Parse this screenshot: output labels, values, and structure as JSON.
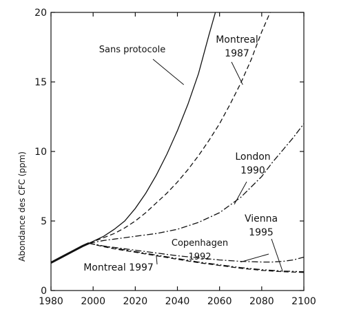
{
  "chart_data": {
    "type": "line",
    "title": "",
    "xlabel": "",
    "ylabel": "Abondance des CFC  (ppm)",
    "xlim": [
      1980,
      2100
    ],
    "ylim": [
      0,
      20
    ],
    "xticks": [
      "1980",
      "2000",
      "2020",
      "2040",
      "2060",
      "2080",
      "2100"
    ],
    "yticks": [
      "0",
      "5",
      "10",
      "15",
      "20"
    ],
    "grid": false,
    "legend": "none",
    "series": [
      {
        "name": "Sans protocole",
        "style": "solid",
        "x": [
          1980,
          1985,
          1990,
          1995,
          1998,
          2005,
          2010,
          2015,
          2020,
          2025,
          2030,
          2035,
          2040,
          2045,
          2050,
          2055,
          2058
        ],
        "y": [
          2.0,
          2.4,
          2.8,
          3.2,
          3.4,
          3.9,
          4.4,
          5.0,
          5.9,
          7.0,
          8.3,
          9.8,
          11.5,
          13.4,
          15.6,
          18.4,
          20.0
        ]
      },
      {
        "name": "Montreal 1987",
        "style": "dashed",
        "x": [
          1998,
          2005,
          2010,
          2015,
          2020,
          2025,
          2030,
          2035,
          2040,
          2045,
          2050,
          2055,
          2060,
          2065,
          2070,
          2075,
          2080,
          2084
        ],
        "y": [
          3.4,
          3.8,
          4.1,
          4.5,
          5.0,
          5.6,
          6.3,
          7.0,
          7.8,
          8.7,
          9.7,
          10.8,
          12.0,
          13.4,
          14.9,
          16.6,
          18.6,
          20.0
        ]
      },
      {
        "name": "London 1990",
        "style": "dashdot",
        "x": [
          1998,
          2005,
          2010,
          2020,
          2030,
          2040,
          2050,
          2060,
          2070,
          2080,
          2085,
          2090,
          2095,
          2100
        ],
        "y": [
          3.4,
          3.6,
          3.7,
          3.9,
          4.1,
          4.4,
          4.9,
          5.6,
          6.7,
          8.2,
          9.2,
          10.1,
          11.0,
          12.0
        ]
      },
      {
        "name": "Copenhagen 1992",
        "style": "dashdot",
        "x": [
          1998,
          2005,
          2010,
          2020,
          2030,
          2040,
          2050,
          2060,
          2070,
          2080,
          2085,
          2090,
          2095,
          2100
        ],
        "y": [
          3.4,
          3.2,
          3.1,
          2.9,
          2.7,
          2.5,
          2.35,
          2.2,
          2.1,
          2.05,
          2.05,
          2.1,
          2.2,
          2.4
        ]
      },
      {
        "name": "Vienna 1995",
        "style": "dashdotdot",
        "x": [
          1998,
          2005,
          2010,
          2020,
          2030,
          2040,
          2050,
          2060,
          2070,
          2080,
          2090,
          2100
        ],
        "y": [
          3.4,
          3.2,
          3.05,
          2.8,
          2.55,
          2.3,
          2.05,
          1.85,
          1.65,
          1.5,
          1.4,
          1.35
        ]
      },
      {
        "name": "Montreal 1997",
        "style": "dashed",
        "x": [
          1998,
          2005,
          2010,
          2020,
          2030,
          2040,
          2050,
          2060,
          2070,
          2080,
          2090,
          2100
        ],
        "y": [
          3.4,
          3.15,
          3.0,
          2.75,
          2.5,
          2.25,
          2.0,
          1.8,
          1.6,
          1.45,
          1.35,
          1.3
        ]
      }
    ],
    "annotations": [
      {
        "lines": [
          "Sans protocole"
        ],
        "series": "Sans protocole",
        "at": [
          2043,
          14.8
        ]
      },
      {
        "lines": [
          "Montreal",
          "1987"
        ],
        "series": "Montreal 1987",
        "at": [
          2071,
          14.8
        ]
      },
      {
        "lines": [
          "London",
          "1990"
        ],
        "series": "London 1990",
        "at": [
          2067,
          6.2
        ]
      },
      {
        "lines": [
          "Vienna",
          "1995"
        ],
        "series": "Vienna 1995",
        "at": [
          2090,
          1.35
        ]
      },
      {
        "lines": [
          "Copenhagen",
          "1992"
        ],
        "series": "Copenhagen 1992",
        "at": [
          2070,
          2.05
        ]
      },
      {
        "lines": [
          "Montreal 1997"
        ],
        "series": "Montreal 1997",
        "at": [
          2030,
          2.5
        ]
      }
    ]
  }
}
